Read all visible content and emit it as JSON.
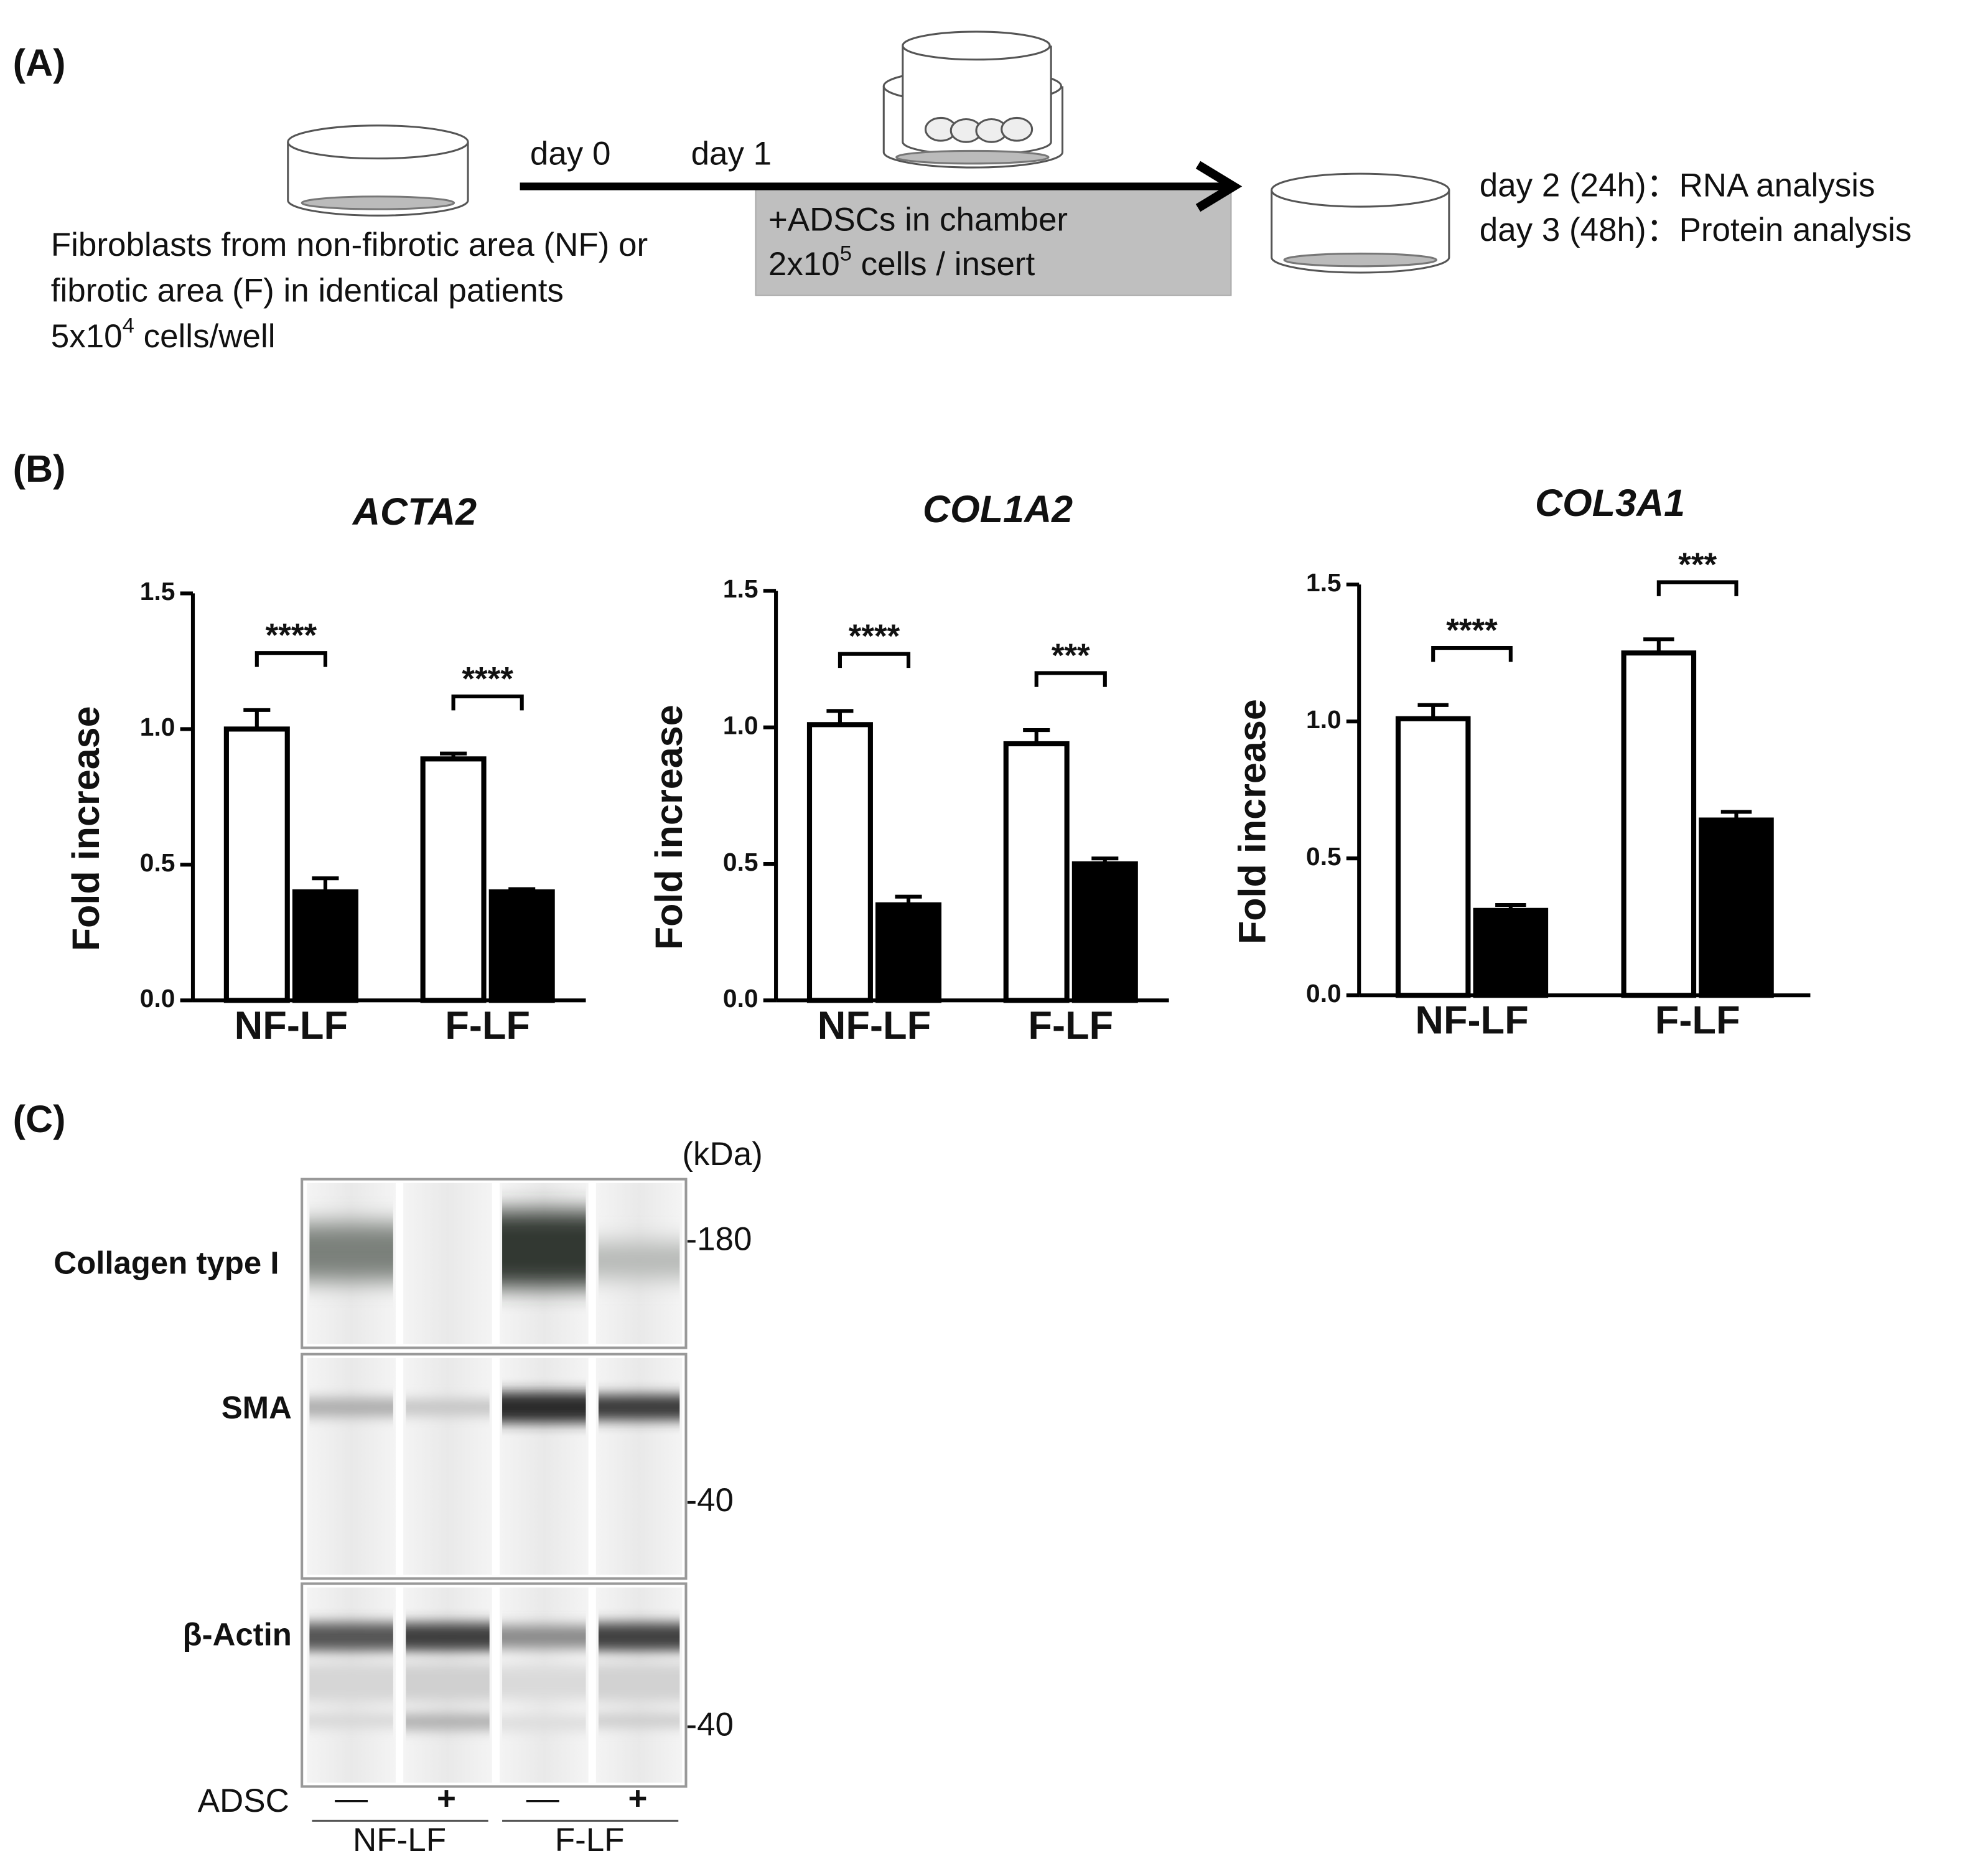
{
  "panel_a": {
    "label": "(A)",
    "day0": "day 0",
    "day1": "day 1",
    "chamber_line1": "+ADSCs in chamber",
    "chamber_line2": {
      "pre": "2x10",
      "sup": "5",
      "post": " cells / insert"
    },
    "fibroblast_lines": [
      "Fibroblasts from non-fibrotic area (NF) or",
      "fibrotic area (F) in identical patients"
    ],
    "fibroblast_count": {
      "pre": "5x10",
      "sup": "4",
      "post": " cells/well"
    },
    "analysis": [
      "day 2 (24h)：RNA analysis",
      "day 3 (48h)：Protein analysis"
    ]
  },
  "panel_b_label": "(B)",
  "chart_data": [
    {
      "type": "bar",
      "title": "ACTA2",
      "y_label": "Fold increase",
      "categories": [
        "NF-LF",
        "F-LF"
      ],
      "series": [
        {
          "color": "#ffffff",
          "values": [
            1.0,
            0.89
          ],
          "errors": [
            0.07,
            0.02
          ]
        },
        {
          "color": "#000000",
          "values": [
            0.4,
            0.4
          ],
          "errors": [
            0.05,
            0.01
          ]
        }
      ],
      "significance": [
        "****",
        "****"
      ],
      "ylim": [
        0,
        1.5
      ],
      "yticks": [
        {
          "value": 0,
          "label": "0.0"
        },
        {
          "value": 0.5,
          "label": "0.5"
        },
        {
          "value": 1,
          "label": "1.0"
        },
        {
          "value": 1.5,
          "label": "1.5"
        }
      ]
    },
    {
      "type": "bar",
      "title": "COL1A2",
      "y_label": "Fold increase",
      "categories": [
        "NF-LF",
        "F-LF"
      ],
      "series": [
        {
          "color": "#ffffff",
          "values": [
            1.01,
            0.94
          ],
          "errors": [
            0.05,
            0.05
          ]
        },
        {
          "color": "#000000",
          "values": [
            0.35,
            0.5
          ],
          "errors": [
            0.03,
            0.02
          ]
        }
      ],
      "significance": [
        "****",
        "***"
      ],
      "ylim": [
        0,
        1.5
      ],
      "yticks": [
        {
          "value": 0,
          "label": "0.0"
        },
        {
          "value": 0.5,
          "label": "0.5"
        },
        {
          "value": 1,
          "label": "1.0"
        },
        {
          "value": 1.5,
          "label": "1.5"
        }
      ]
    },
    {
      "type": "bar",
      "title": "COL3A1",
      "y_label": "Fold increase",
      "categories": [
        "NF-LF",
        "F-LF"
      ],
      "series": [
        {
          "color": "#ffffff",
          "values": [
            1.01,
            1.25
          ],
          "errors": [
            0.05,
            0.05
          ]
        },
        {
          "color": "#000000",
          "values": [
            0.31,
            0.64
          ],
          "errors": [
            0.02,
            0.03
          ]
        }
      ],
      "significance": [
        "****",
        "***"
      ],
      "ylim": [
        0,
        1.5
      ],
      "yticks": [
        {
          "value": 0,
          "label": "0.0"
        },
        {
          "value": 0.5,
          "label": "0.5"
        },
        {
          "value": 1,
          "label": "1.0"
        },
        {
          "value": 1.5,
          "label": "1.5"
        }
      ]
    }
  ],
  "panel_c": {
    "label": "(C)",
    "unit": "(kDa)",
    "rows": [
      "Collagen type I",
      "SMA",
      "β-Actin"
    ],
    "markers": [
      "-180",
      "-40",
      "-40"
    ],
    "adsc_label": "ADSC",
    "adsc": [
      "—",
      "+",
      "—",
      "+"
    ],
    "groups": [
      "NF-LF",
      "F-LF"
    ]
  }
}
